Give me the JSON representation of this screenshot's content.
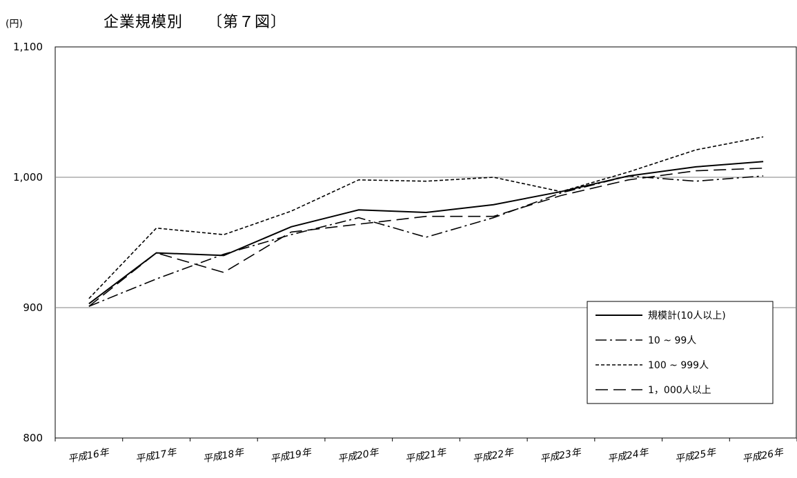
{
  "chart_data": {
    "type": "line",
    "title": "企業規模別　　〔第７図〕",
    "ylabel": "(円)",
    "xlabel": "",
    "categories": [
      "平成16年",
      "平成17年",
      "平成18年",
      "平成19年",
      "平成20年",
      "平成21年",
      "平成22年",
      "平成23年",
      "平成24年",
      "平成25年",
      "平成26年"
    ],
    "ylim": [
      800,
      1100
    ],
    "yticks": [
      "800",
      "900",
      "1,000",
      "1,100"
    ],
    "ytick_values": [
      800,
      900,
      1000,
      1100
    ],
    "grid": "horizontal",
    "legend_position": "lower-right",
    "series": [
      {
        "name": "規模計(10人以上)",
        "dash": "solid",
        "values": [
          903,
          942,
          940,
          962,
          975,
          973,
          979,
          989,
          1001,
          1008,
          1012
        ]
      },
      {
        "name": "10 ~ 99人",
        "dash": "dashdot",
        "values": [
          901,
          922,
          941,
          956,
          969,
          954,
          969,
          988,
          1001,
          997,
          1001
        ]
      },
      {
        "name": "100 ~ 999人",
        "dash": "dotted",
        "values": [
          907,
          961,
          956,
          974,
          998,
          997,
          1000,
          989,
          1004,
          1021,
          1031
        ]
      },
      {
        "name": "1，000人以上",
        "dash": "longdash",
        "values": [
          901,
          942,
          927,
          958,
          964,
          970,
          970,
          986,
          998,
          1005,
          1007
        ]
      }
    ]
  }
}
